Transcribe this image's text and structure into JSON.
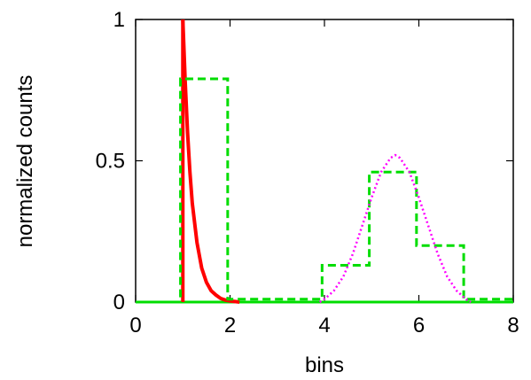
{
  "chart_data": {
    "type": "line",
    "title": "",
    "xlabel": "bins",
    "ylabel": "normalized counts",
    "xlim": [
      0,
      8
    ],
    "ylim": [
      0,
      1
    ],
    "xticks": [
      0,
      2,
      4,
      6,
      8
    ],
    "xtick_labels": [
      "0",
      "2",
      "4",
      "6",
      "8"
    ],
    "yticks": [
      0,
      0.5,
      1
    ],
    "ytick_labels": [
      "0",
      "0.5",
      "1"
    ],
    "grid": false,
    "legend": "none",
    "series": [
      {
        "style": "solid",
        "color": "#ff0000",
        "x": [
          1.0,
          1.05,
          1.1,
          1.15,
          1.2,
          1.3,
          1.4,
          1.5,
          1.6,
          1.7,
          1.8,
          1.9,
          2.0,
          2.2
        ],
        "y": [
          1.0,
          0.78,
          0.6,
          0.46,
          0.35,
          0.21,
          0.12,
          0.07,
          0.04,
          0.025,
          0.013,
          0.007,
          0.004,
          0.0
        ]
      },
      {
        "style": "dashed-step",
        "color": "#00dd00",
        "x": [
          0,
          0.95,
          0.95,
          1.95,
          1.95,
          3.95,
          3.95,
          4.95,
          4.95,
          5.95,
          5.95,
          6.95,
          6.95,
          8.0
        ],
        "y": [
          0,
          0,
          0.79,
          0.79,
          0.01,
          0.01,
          0.13,
          0.13,
          0.46,
          0.46,
          0.2,
          0.2,
          0.01,
          0.01
        ]
      },
      {
        "style": "dotted",
        "color": "#ff00ff",
        "x": [
          3.9,
          4.0,
          4.2,
          4.4,
          4.6,
          4.8,
          5.0,
          5.2,
          5.4,
          5.5,
          5.6,
          5.8,
          6.0,
          6.2,
          6.4,
          6.6,
          6.8,
          7.0,
          7.1
        ],
        "y": [
          0.0,
          0.01,
          0.04,
          0.09,
          0.17,
          0.27,
          0.37,
          0.46,
          0.51,
          0.52,
          0.51,
          0.46,
          0.37,
          0.27,
          0.17,
          0.09,
          0.04,
          0.01,
          0.0
        ]
      }
    ]
  }
}
